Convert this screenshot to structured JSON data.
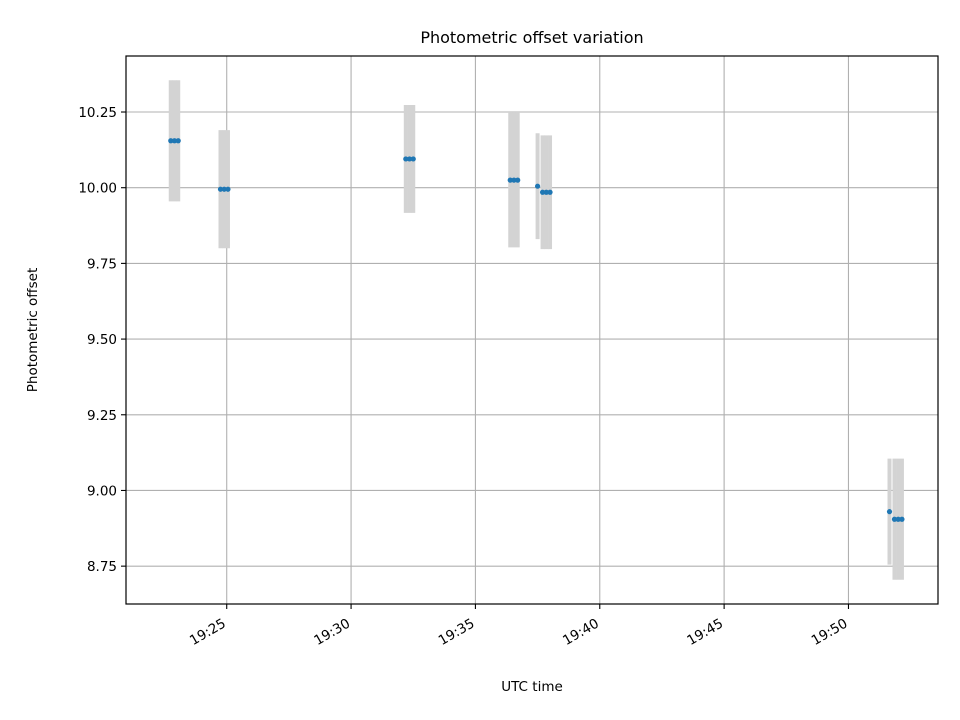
{
  "chart_data": {
    "type": "scatter",
    "title": "Photometric offset variation",
    "xlabel": "UTC time",
    "ylabel": "Photometric offset",
    "x_ticks": [
      "19:25",
      "19:30",
      "19:35",
      "19:40",
      "19:45",
      "19:50"
    ],
    "x_tick_minutes": [
      25,
      30,
      35,
      40,
      45,
      50
    ],
    "xlim_minutes_after_19h": [
      20.95,
      53.6
    ],
    "y_ticks": [
      "8.75",
      "9.00",
      "9.25",
      "9.50",
      "9.75",
      "10.00",
      "10.25"
    ],
    "ylim": [
      8.625,
      10.435
    ],
    "grid": true,
    "colors": {
      "points": "#1f77b4",
      "error_bars": "#d3d3d3",
      "grid": "#b0b0b0"
    },
    "series": [
      {
        "points": [
          {
            "x": "19:22:45",
            "y": 10.155,
            "yerr": 0.2
          },
          {
            "x": "19:22:54",
            "y": 10.155,
            "yerr": 0.2
          },
          {
            "x": "19:23:03",
            "y": 10.155,
            "yerr": 0.2
          },
          {
            "x": "19:24:45",
            "y": 9.995,
            "yerr": 0.195
          },
          {
            "x": "19:24:54",
            "y": 9.995,
            "yerr": 0.195
          },
          {
            "x": "19:25:03",
            "y": 9.995,
            "yerr": 0.195
          },
          {
            "x": "19:32:12",
            "y": 10.095,
            "yerr": 0.178
          },
          {
            "x": "19:32:21",
            "y": 10.095,
            "yerr": 0.178
          },
          {
            "x": "19:32:30",
            "y": 10.095,
            "yerr": 0.178
          },
          {
            "x": "19:36:24",
            "y": 10.025,
            "yerr": 0.222
          },
          {
            "x": "19:36:33",
            "y": 10.025,
            "yerr": 0.222
          },
          {
            "x": "19:36:42",
            "y": 10.025,
            "yerr": 0.222
          },
          {
            "x": "19:37:30",
            "y": 10.005,
            "yerr": 0.175
          },
          {
            "x": "19:37:42",
            "y": 9.985,
            "yerr": 0.188
          },
          {
            "x": "19:37:51",
            "y": 9.985,
            "yerr": 0.188
          },
          {
            "x": "19:38:00",
            "y": 9.985,
            "yerr": 0.188
          },
          {
            "x": "19:51:39",
            "y": 8.93,
            "yerr": 0.175
          },
          {
            "x": "19:51:51",
            "y": 8.905,
            "yerr": 0.2
          },
          {
            "x": "19:52:00",
            "y": 8.905,
            "yerr": 0.2
          },
          {
            "x": "19:52:09",
            "y": 8.905,
            "yerr": 0.2
          }
        ]
      }
    ]
  }
}
